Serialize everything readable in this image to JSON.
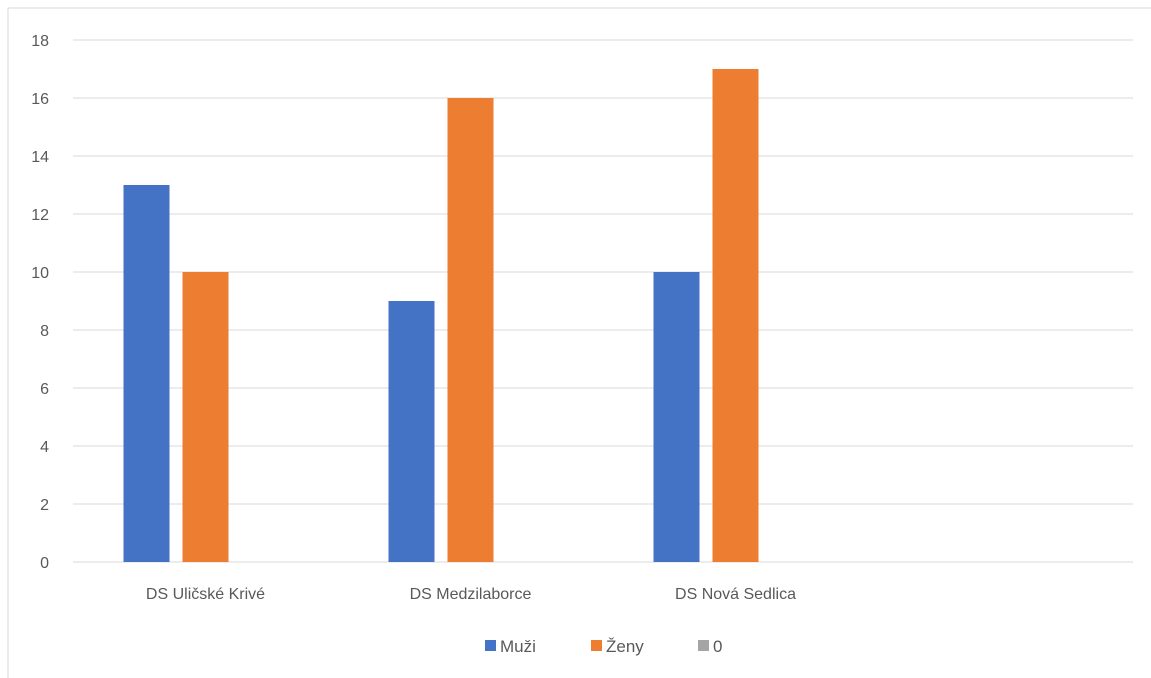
{
  "chart_data": {
    "type": "bar",
    "categories": [
      "DS Uličské Krivé",
      "DS Medzilaborce",
      "DS Nová Sedlica",
      ""
    ],
    "series": [
      {
        "name": "Muži",
        "color": "#4472C4",
        "values": [
          13,
          9,
          10,
          0
        ]
      },
      {
        "name": "Ženy",
        "color": "#ED7D31",
        "values": [
          10,
          16,
          17,
          0
        ]
      },
      {
        "name": "0",
        "color": "#A5A5A5",
        "values": [
          0,
          0,
          0,
          0
        ]
      }
    ],
    "y_ticks": [
      "0",
      "2",
      "4",
      "6",
      "8",
      "10",
      "12",
      "14",
      "16",
      "18"
    ],
    "ylim": [
      0,
      18
    ],
    "grid": true,
    "legend_position": "bottom",
    "title": "",
    "xlabel": "",
    "ylabel": ""
  }
}
